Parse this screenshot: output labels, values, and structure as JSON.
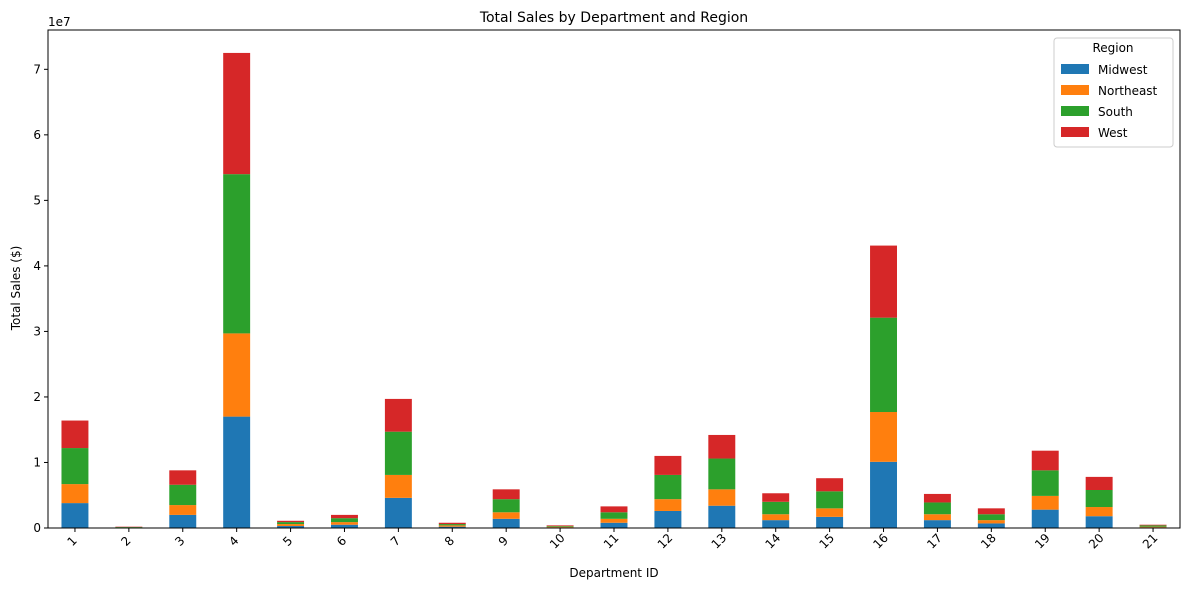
{
  "chart_data": {
    "type": "bar",
    "stacked": true,
    "title": "Total Sales by Department and Region",
    "xlabel": "Department ID",
    "ylabel": "Total Sales ($)",
    "y_offset_label": "1e7",
    "y_multiplier": 10000000,
    "ylim": [
      0,
      76000000
    ],
    "yticks": [
      0,
      1,
      2,
      3,
      4,
      5,
      6,
      7
    ],
    "grid": false,
    "legend_title": "Region",
    "legend_position": "top-right",
    "categories": [
      "1",
      "2",
      "3",
      "4",
      "5",
      "6",
      "7",
      "8",
      "9",
      "10",
      "11",
      "12",
      "13",
      "14",
      "15",
      "16",
      "17",
      "18",
      "19",
      "20",
      "21"
    ],
    "series": [
      {
        "name": "Midwest",
        "color": "#1f77b4",
        "values": [
          3800000,
          50000,
          2000000,
          17000000,
          300000,
          500000,
          4600000,
          200000,
          1400000,
          100000,
          800000,
          2600000,
          3400000,
          1200000,
          1700000,
          10100000,
          1200000,
          700000,
          2800000,
          1800000,
          100000
        ]
      },
      {
        "name": "Northeast",
        "color": "#ff7f0e",
        "values": [
          2900000,
          50000,
          1500000,
          12700000,
          300000,
          400000,
          3500000,
          200000,
          1000000,
          100000,
          600000,
          1800000,
          2500000,
          900000,
          1300000,
          7600000,
          900000,
          500000,
          2100000,
          1400000,
          100000
        ]
      },
      {
        "name": "South",
        "color": "#2ca02c",
        "values": [
          5500000,
          50000,
          3100000,
          24300000,
          300000,
          600000,
          6600000,
          200000,
          2000000,
          100000,
          1000000,
          3700000,
          4700000,
          1900000,
          2600000,
          14400000,
          1800000,
          900000,
          3900000,
          2600000,
          200000
        ]
      },
      {
        "name": "West",
        "color": "#d62728",
        "values": [
          4200000,
          50000,
          2200000,
          18500000,
          200000,
          500000,
          5000000,
          200000,
          1500000,
          100000,
          900000,
          2900000,
          3600000,
          1300000,
          2000000,
          11000000,
          1300000,
          900000,
          3000000,
          2000000,
          100000
        ]
      }
    ]
  }
}
